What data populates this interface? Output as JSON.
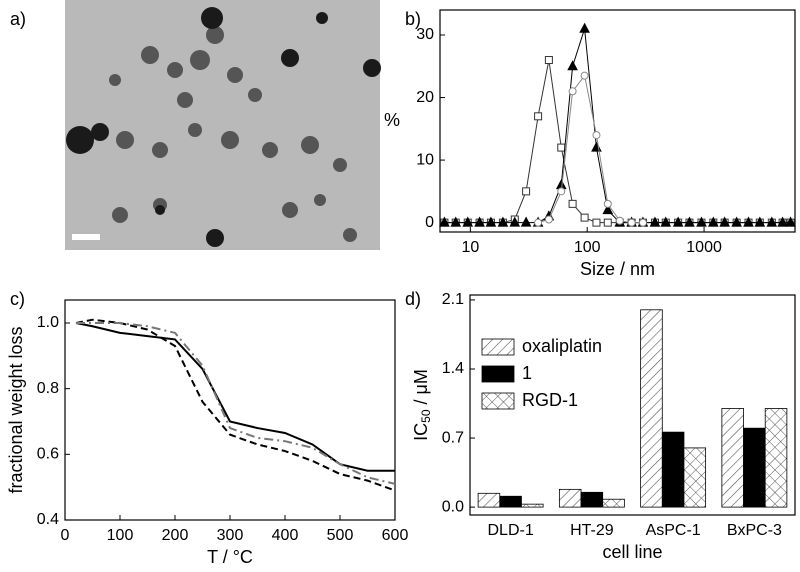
{
  "panel_labels": [
    "a)",
    "b)",
    "c)",
    "d)"
  ],
  "chart_data": [
    {
      "type": "line",
      "xscale": "log",
      "ylabel": "%",
      "xlabel": "Size / nm",
      "xlim": [
        5.5,
        6000
      ],
      "xticks": [
        10,
        100,
        1000
      ],
      "ylim": [
        -1.5,
        34
      ],
      "yticks": [
        0,
        10,
        20,
        30
      ],
      "x": [
        6,
        7.5,
        9.5,
        12,
        15,
        19,
        24,
        30,
        38,
        47,
        60,
        75,
        95,
        120,
        150,
        190,
        240,
        300,
        380,
        470,
        600,
        750,
        950,
        1200,
        1500,
        1900,
        2400,
        3000,
        3800,
        4700,
        5500
      ],
      "series": [
        {
          "color": "#333333",
          "marker": "square",
          "values": [
            0,
            0,
            0,
            0,
            0,
            0,
            0.5,
            5,
            17,
            26,
            12,
            3,
            0.8,
            0,
            0,
            0,
            0,
            0,
            0,
            0,
            0,
            0,
            0,
            0,
            0,
            0,
            0,
            0,
            0,
            0,
            0
          ]
        },
        {
          "color": "#000000",
          "marker": "triangle",
          "values": [
            0,
            0,
            0,
            0,
            0,
            0,
            0,
            0,
            0,
            1,
            6,
            25,
            31,
            12,
            2,
            0,
            0,
            0,
            0,
            0,
            0,
            0,
            0,
            0,
            0,
            0,
            0,
            0,
            0,
            0,
            0
          ]
        },
        {
          "color": "#888888",
          "marker": "circle",
          "values": [
            null,
            null,
            null,
            null,
            null,
            null,
            null,
            null,
            0,
            0.5,
            5,
            21,
            23.5,
            14,
            3,
            0.3,
            0,
            0,
            null,
            null,
            null,
            null,
            null,
            null,
            null,
            null,
            null,
            null,
            null,
            null,
            null
          ]
        }
      ]
    },
    {
      "type": "line",
      "xlabel": "T / °C",
      "ylabel": "fractional weight loss",
      "xlim": [
        0,
        600
      ],
      "xticks": [
        0,
        100,
        200,
        300,
        400,
        500,
        600
      ],
      "ylim": [
        0.4,
        1.07
      ],
      "yticks": [
        0.4,
        0.6,
        0.8,
        {
          "value": 1.0,
          "label": "1.0"
        }
      ],
      "x": [
        20,
        50,
        100,
        150,
        200,
        250,
        300,
        350,
        400,
        450,
        500,
        550,
        600
      ],
      "series": [
        {
          "color": "#000000",
          "dash": "solid",
          "values": [
            1.0,
            0.99,
            0.97,
            0.96,
            0.95,
            0.86,
            0.7,
            0.68,
            0.665,
            0.63,
            0.57,
            0.55,
            0.55
          ]
        },
        {
          "color": "#000000",
          "dash": "dashed",
          "values": [
            1.0,
            1.01,
            1.0,
            0.98,
            0.93,
            0.76,
            0.66,
            0.63,
            0.61,
            0.58,
            0.54,
            0.52,
            0.49
          ]
        },
        {
          "color": "#777777",
          "dash": "dashdot",
          "values": [
            1.0,
            1.0,
            1.0,
            0.99,
            0.97,
            0.87,
            0.68,
            0.65,
            0.64,
            0.62,
            0.57,
            0.53,
            0.51
          ]
        }
      ]
    },
    {
      "type": "bar",
      "xlabel": "cell line",
      "ylabel": {
        "main": "IC",
        "sub": "50",
        "unit": " / μM"
      },
      "categories": [
        "DLD-1",
        "HT-29",
        "AsPC-1",
        "BxPC-3"
      ],
      "ylim": [
        -0.08,
        2.15
      ],
      "yticks": [
        {
          "value": 0,
          "label": "0.0"
        },
        0.7,
        1.4,
        2.1
      ],
      "legend": "upper left",
      "series": [
        {
          "name": "oxaliplatin",
          "pattern": "hatch",
          "values": [
            0.14,
            0.18,
            2.0,
            1.0
          ]
        },
        {
          "name": "1",
          "pattern": "solid",
          "values": [
            0.11,
            0.15,
            0.76,
            0.8
          ]
        },
        {
          "name": "RGD-1",
          "pattern": "cross",
          "values": [
            0.03,
            0.08,
            0.6,
            1.0
          ]
        }
      ]
    }
  ]
}
